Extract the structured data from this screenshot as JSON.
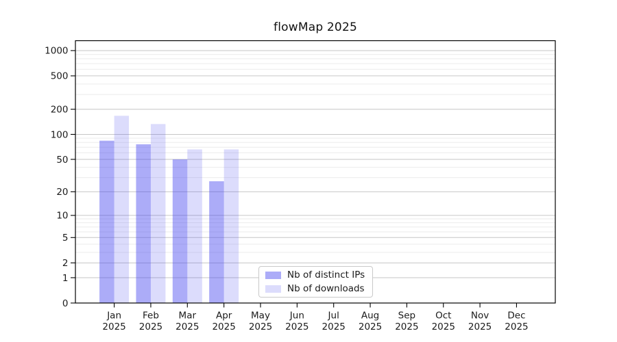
{
  "title": "flowMap 2025",
  "chart_data": {
    "type": "bar",
    "title": "flowMap 2025",
    "categories": [
      "Jan 2025",
      "Feb 2025",
      "Mar 2025",
      "Apr 2025",
      "May 2025",
      "Jun 2025",
      "Jul 2025",
      "Aug 2025",
      "Sep 2025",
      "Oct 2025",
      "Nov 2025",
      "Dec 2025"
    ],
    "series": [
      {
        "name": "Nb of distinct IPs",
        "color_hex": "#acacf8",
        "color_rgba": "rgba(70,70,240,0.45)",
        "values": [
          84,
          76,
          50,
          27,
          null,
          null,
          null,
          null,
          null,
          null,
          null,
          null
        ]
      },
      {
        "name": "Nb of downloads",
        "color_hex": "#dcdcf8",
        "color_rgba": "rgba(70,70,240,0.19)",
        "values": [
          167,
          133,
          66,
          66,
          null,
          null,
          null,
          null,
          null,
          null,
          null,
          null
        ]
      }
    ],
    "xlabel": "",
    "ylabel": "",
    "yscale": "symlog (log10(1+v))",
    "ylim": [
      0,
      1300
    ],
    "y_ticks": [
      0,
      1,
      2,
      5,
      10,
      20,
      50,
      100,
      200,
      500,
      1000
    ],
    "y_minor_ticks": [
      3,
      4,
      6,
      7,
      8,
      9,
      30,
      40,
      60,
      70,
      80,
      90,
      300,
      400,
      600,
      700,
      800,
      900
    ],
    "grid": true,
    "legend_position": "lower center-left inside plot"
  },
  "colors": {
    "major_grid": "#c6c6c6",
    "minor_grid": "#ebebeb",
    "axis": "#000000",
    "text": "#1a1a1a"
  }
}
